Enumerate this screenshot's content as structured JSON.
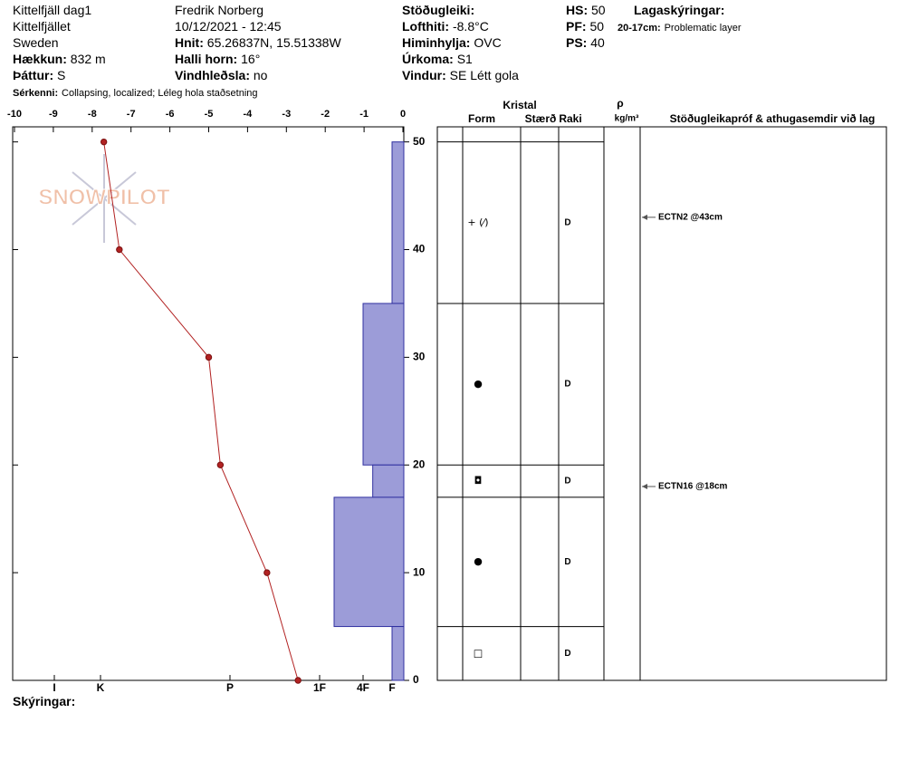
{
  "header": {
    "columns": [
      [
        "Kittelfjäll dag1",
        "Kittelfjället",
        "Sweden",
        {
          "label": "Hækkun:",
          "value": "832 m"
        },
        {
          "label": "Þáttur:",
          "value": "S"
        },
        {
          "label": "Sérkenni:",
          "value": "Collapsing, localized;  Léleg hola staðsetning",
          "small": true
        }
      ],
      [
        "Fredrik Norberg",
        "10/12/2021 - 12:45",
        {
          "label": "Hnit:",
          "value": "65.26837N, 15.51338W"
        },
        {
          "label": "Halli horn:",
          "value": "16°"
        },
        {
          "label": "Vindhleðsla:",
          "value": "no"
        }
      ],
      [
        {
          "label": "Stöðugleiki:"
        },
        {
          "label": "Lofthiti:",
          "value": "-8.8°C"
        },
        {
          "label": "Himinhylja:",
          "value": "OVC"
        },
        {
          "label": "Úrkoma:",
          "value": "S1"
        },
        {
          "label": "Vindur:",
          "value": "SE Létt gola"
        }
      ],
      [
        {
          "label": "HS:",
          "value": "50"
        },
        {
          "label": "PF:",
          "value": "50"
        },
        {
          "label": "PS:",
          "value": "40"
        }
      ],
      [
        {
          "label": "Lagaskýringar:"
        },
        {
          "label": "20-17cm:",
          "value": "Problematic layer",
          "small": true
        }
      ]
    ],
    "footer": "Skýringar:",
    "watermark": "SNOWPILOT"
  },
  "chart_data": {
    "type": "snowprofile",
    "xlim": [
      -10,
      0
    ],
    "xticks": [
      -10,
      -9,
      -8,
      -7,
      -6,
      -5,
      -4,
      -3,
      -2,
      -1,
      0
    ],
    "ylim": [
      0,
      51.4
    ],
    "yticks": [
      0,
      10,
      20,
      30,
      40,
      50
    ],
    "temperature": {
      "heights": [
        50,
        40,
        30,
        20,
        10,
        0
      ],
      "values": [
        -7.7,
        -7.3,
        -5.0,
        -4.7,
        -3.5,
        -2.7
      ],
      "color": "#b22222"
    },
    "hardness_ticks": [
      "I",
      "K",
      "P",
      "1F",
      "4F",
      "F"
    ],
    "bar_color": "#9c9cd8",
    "boundaries": [
      50,
      35,
      20,
      17,
      5,
      0
    ],
    "layers": [
      {
        "hardness": "F",
        "form": "+ (⁄)",
        "moisture": "D"
      },
      {
        "hardness": "4F",
        "form": "●",
        "moisture": "D"
      },
      {
        "hardness": "4F-",
        "form": "◘",
        "moisture": "D"
      },
      {
        "hardness": "1F-",
        "form": "●",
        "moisture": "D"
      },
      {
        "hardness": "F",
        "form": "□",
        "moisture": "D"
      }
    ],
    "table_headers": [
      "Kristal",
      "Form",
      "Stærð",
      "Raki",
      "ρ",
      "kg/m³",
      "Stöðugleikapróf & athugasemdir við lag"
    ],
    "tests": [
      {
        "label": "ECTN2 @43cm",
        "height": 43
      },
      {
        "label": "ECTN16 @18cm",
        "height": 18
      }
    ]
  }
}
